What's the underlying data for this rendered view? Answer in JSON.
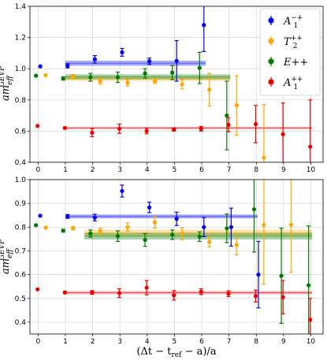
{
  "chart_data": {
    "type": "scatter",
    "xlabel": "(Δt − t_ref − a)/a",
    "x_ticks": [
      0,
      1,
      2,
      3,
      4,
      5,
      6,
      7,
      8,
      9,
      10
    ],
    "xlim": [
      -0.3,
      10.45
    ],
    "legend": {
      "placement": "top-right",
      "entries": [
        {
          "label": "A1−+",
          "color": "#0000ee"
        },
        {
          "label": "T2++",
          "color": "#ffa500"
        },
        {
          "label": "E++",
          "color": "#007a00"
        },
        {
          "label": "A1++",
          "color": "#ee0000"
        }
      ]
    },
    "panels": [
      {
        "ylabel": "am_eff^GEVP",
        "ylim": [
          0.4,
          1.4
        ],
        "y_ticks": [
          0.4,
          0.6,
          0.8,
          1.0,
          1.2,
          1.4
        ],
        "grid": true,
        "series": [
          {
            "name": "A1−+",
            "color": "#0000ee",
            "points": [
              [
                0.08,
                1.015,
                0
              ],
              [
                1.08,
                1.018,
                0.013
              ],
              [
                2.08,
                1.06,
                0.024
              ],
              [
                3.08,
                1.105,
                0.025
              ],
              [
                4.08,
                1.048,
                0.02
              ],
              [
                5.08,
                1.05,
                0.13
              ],
              [
                6.08,
                1.28,
                0.17
              ]
            ],
            "fit": {
              "x0": 1.0,
              "x1": 6.15,
              "y": 1.035,
              "err": 0.016
            }
          },
          {
            "name": "T2++",
            "color": "#ffa500",
            "points": [
              [
                0.28,
                0.958,
                0
              ],
              [
                1.28,
                0.95,
                0.012
              ],
              [
                2.28,
                0.92,
                0.018
              ],
              [
                3.28,
                0.91,
                0.02
              ],
              [
                4.28,
                0.92,
                0.014
              ],
              [
                5.28,
                0.9,
                0.03
              ],
              [
                6.28,
                0.865,
                0.105
              ],
              [
                7.28,
                0.765,
                0.19
              ],
              [
                8.28,
                0.43,
                0.34
              ]
            ],
            "fit": {
              "x0": 1.0,
              "x1": 7.05,
              "y": 0.935,
              "err": 0.013
            }
          },
          {
            "name": "E++",
            "color": "#007a00",
            "points": [
              [
                -0.08,
                0.955,
                0
              ],
              [
                0.92,
                0.937,
                0.01
              ],
              [
                1.92,
                0.945,
                0.025
              ],
              [
                2.92,
                0.945,
                0.033
              ],
              [
                3.92,
                0.97,
                0.03
              ],
              [
                4.92,
                0.975,
                0.045
              ],
              [
                5.92,
                1.005,
                0.1
              ],
              [
                6.92,
                0.7,
                0.22
              ]
            ],
            "fit": {
              "x0": 1.0,
              "x1": 7.05,
              "y": 0.948,
              "err": 0.016
            }
          },
          {
            "name": "A1++",
            "color": "#ee0000",
            "points": [
              [
                -0.02,
                0.633,
                0
              ],
              [
                0.98,
                0.62,
                0.006
              ],
              [
                1.98,
                0.59,
                0.026
              ],
              [
                2.98,
                0.615,
                0.03
              ],
              [
                3.98,
                0.601,
                0.018
              ],
              [
                4.98,
                0.61,
                0.01
              ],
              [
                5.98,
                0.615,
                0.015
              ],
              [
                6.98,
                0.64,
                0.045
              ],
              [
                7.98,
                0.645,
                0.12
              ],
              [
                8.98,
                0.58,
                0.2
              ],
              [
                9.98,
                0.5,
                0.3
              ]
            ],
            "fit": {
              "x0": 1.0,
              "x1": 10.05,
              "y": 0.62,
              "err": 0.007
            }
          }
        ]
      },
      {
        "ylabel": "am_eff^GEVP",
        "ylim": [
          0.35,
          1.0
        ],
        "y_ticks": [
          0.4,
          0.5,
          0.6,
          0.7,
          0.8,
          0.9,
          1.0
        ],
        "grid": true,
        "series": [
          {
            "name": "A1−+",
            "color": "#0000ee",
            "points": [
              [
                0.08,
                0.848,
                0
              ],
              [
                1.08,
                0.845,
                0.008
              ],
              [
                2.08,
                0.84,
                0.014
              ],
              [
                3.08,
                0.952,
                0.025
              ],
              [
                4.08,
                0.883,
                0.022
              ],
              [
                5.08,
                0.835,
                0.028
              ],
              [
                6.08,
                0.8,
                0.04
              ],
              [
                7.08,
                0.8,
                0.08
              ],
              [
                8.08,
                0.6,
                0.14
              ]
            ],
            "fit": {
              "x0": 1.0,
              "x1": 8.05,
              "y": 0.845,
              "err": 0.008
            }
          },
          {
            "name": "T2++",
            "color": "#ffa500",
            "points": [
              [
                0.28,
                0.798,
                0
              ],
              [
                1.28,
                0.795,
                0.007
              ],
              [
                2.28,
                0.783,
                0.012
              ],
              [
                3.28,
                0.8,
                0.018
              ],
              [
                4.28,
                0.82,
                0.024
              ],
              [
                5.28,
                0.772,
                0.025
              ],
              [
                6.28,
                0.738,
                0.021
              ],
              [
                7.28,
                0.725,
                0.042
              ],
              [
                8.28,
                0.81,
                0.25
              ],
              [
                9.28,
                0.81,
                0.2
              ]
            ],
            "fit": {
              "x0": 1.7,
              "x1": 10.05,
              "y": 0.775,
              "err": 0.014
            }
          },
          {
            "name": "E++",
            "color": "#007a00",
            "points": [
              [
                -0.08,
                0.808,
                0
              ],
              [
                0.92,
                0.785,
                0.006
              ],
              [
                1.92,
                0.773,
                0.015
              ],
              [
                2.92,
                0.762,
                0.022
              ],
              [
                3.92,
                0.746,
                0.027
              ],
              [
                4.92,
                0.768,
                0.02
              ],
              [
                5.92,
                0.76,
                0.02
              ],
              [
                6.92,
                0.795,
                0.06
              ],
              [
                7.92,
                0.875,
                0.18
              ],
              [
                8.92,
                0.595,
                0.2
              ],
              [
                9.92,
                0.555,
                0.25
              ]
            ],
            "fit": {
              "x0": 1.7,
              "x1": 10.05,
              "y": 0.762,
              "err": 0.014
            }
          },
          {
            "name": "A1++",
            "color": "#ee0000",
            "points": [
              [
                -0.02,
                0.538,
                0
              ],
              [
                0.98,
                0.525,
                0.004
              ],
              [
                1.98,
                0.525,
                0.008
              ],
              [
                2.98,
                0.522,
                0.018
              ],
              [
                3.98,
                0.545,
                0.03
              ],
              [
                4.98,
                0.513,
                0.02
              ],
              [
                5.98,
                0.528,
                0.012
              ],
              [
                6.98,
                0.52,
                0.012
              ],
              [
                7.98,
                0.51,
                0.025
              ],
              [
                8.98,
                0.505,
                0.07
              ],
              [
                9.98,
                0.41,
                0.09
              ]
            ],
            "fit": {
              "x0": 1.0,
              "x1": 10.05,
              "y": 0.524,
              "err": 0.006
            }
          }
        ]
      }
    ]
  }
}
